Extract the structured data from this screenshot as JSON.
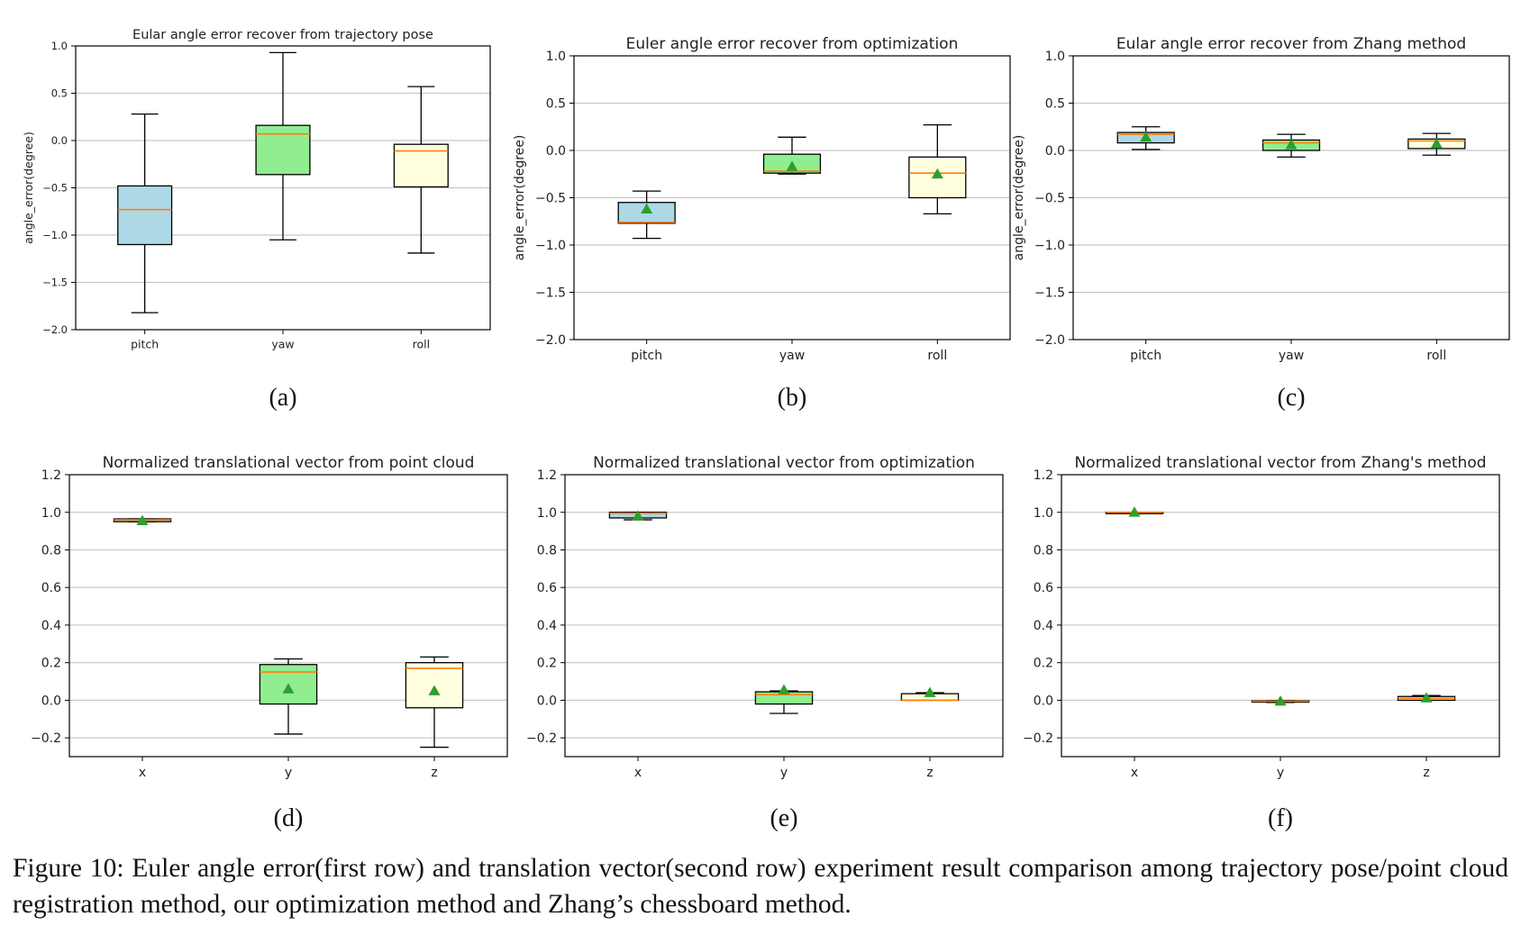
{
  "chart_data": [
    {
      "type": "box",
      "panel_label": "(a)",
      "title": "Eular angle error recover from trajectory pose",
      "xlabel": "",
      "ylabel": "angle_error(degree)",
      "ylim": [
        -2.0,
        1.0
      ],
      "yticks": [
        -2.0,
        -1.5,
        -1.0,
        -0.5,
        0.0,
        0.5,
        1.0
      ],
      "ytick_labels": [
        "−2.0",
        "−1.5",
        "−1.0",
        "−0.5",
        "0.0",
        "0.5",
        "1.0"
      ],
      "grid": "horizontal",
      "show_mean": false,
      "categories": [
        "pitch",
        "yaw",
        "roll"
      ],
      "boxes": [
        {
          "min": -1.82,
          "q1": -1.1,
          "median": -0.73,
          "q3": -0.48,
          "max": 0.28,
          "color": "#add8e6"
        },
        {
          "min": -1.05,
          "q1": -0.36,
          "median": 0.07,
          "q3": 0.16,
          "max": 0.93,
          "color": "#90ee90"
        },
        {
          "min": -1.19,
          "q1": -0.49,
          "median": -0.11,
          "q3": -0.04,
          "max": 0.57,
          "color": "#ffffe0"
        }
      ]
    },
    {
      "type": "box",
      "panel_label": "(b)",
      "title": "Euler angle error recover from optimization",
      "xlabel": "",
      "ylabel": "angle_error(degree)",
      "ylim": [
        -2.0,
        1.0
      ],
      "yticks": [
        -2.0,
        -1.5,
        -1.0,
        -0.5,
        0.0,
        0.5,
        1.0
      ],
      "ytick_labels": [
        "−2.0",
        "−1.5",
        "−1.0",
        "−0.5",
        "0.0",
        "0.5",
        "1.0"
      ],
      "grid": "horizontal",
      "show_mean": true,
      "categories": [
        "pitch",
        "yaw",
        "roll"
      ],
      "boxes": [
        {
          "min": -0.93,
          "q1": -0.77,
          "median": -0.76,
          "q3": -0.55,
          "max": -0.43,
          "mean": -0.62,
          "color": "#add8e6"
        },
        {
          "min": -0.25,
          "q1": -0.24,
          "median": -0.22,
          "q3": -0.04,
          "max": 0.14,
          "mean": -0.17,
          "color": "#90ee90"
        },
        {
          "min": -0.67,
          "q1": -0.5,
          "median": -0.24,
          "q3": -0.07,
          "max": 0.27,
          "mean": -0.25,
          "color": "#ffffe0"
        }
      ]
    },
    {
      "type": "box",
      "panel_label": "(c)",
      "title": "Eular angle error recover from Zhang method",
      "xlabel": "",
      "ylabel": "angle_error(degree)",
      "ylim": [
        -2.0,
        1.0
      ],
      "yticks": [
        -2.0,
        -1.5,
        -1.0,
        -0.5,
        0.0,
        0.5,
        1.0
      ],
      "ytick_labels": [
        "−2.0",
        "−1.5",
        "−1.0",
        "−0.5",
        "0.0",
        "0.5",
        "1.0"
      ],
      "grid": "horizontal",
      "show_mean": true,
      "categories": [
        "pitch",
        "yaw",
        "roll"
      ],
      "boxes": [
        {
          "min": 0.01,
          "q1": 0.08,
          "median": 0.17,
          "q3": 0.19,
          "max": 0.25,
          "mean": 0.14,
          "color": "#add8e6"
        },
        {
          "min": -0.07,
          "q1": 0.0,
          "median": 0.08,
          "q3": 0.11,
          "max": 0.17,
          "mean": 0.06,
          "color": "#90ee90"
        },
        {
          "min": -0.05,
          "q1": 0.02,
          "median": 0.1,
          "q3": 0.12,
          "max": 0.18,
          "mean": 0.07,
          "color": "#ffffe0"
        }
      ]
    },
    {
      "type": "box",
      "panel_label": "(d)",
      "title": "Normalized translational vector from point cloud",
      "xlabel": "",
      "ylabel": "",
      "ylim": [
        -0.3,
        1.2
      ],
      "yticks": [
        -0.2,
        0.0,
        0.2,
        0.4,
        0.6,
        0.8,
        1.0,
        1.2
      ],
      "ytick_labels": [
        "−0.2",
        "0.0",
        "0.2",
        "0.4",
        "0.6",
        "0.8",
        "1.0",
        "1.2"
      ],
      "grid": "horizontal",
      "show_mean": true,
      "categories": [
        "x",
        "y",
        "z"
      ],
      "boxes": [
        {
          "min": 0.95,
          "q1": 0.95,
          "median": 0.96,
          "q3": 0.965,
          "max": 0.965,
          "mean": 0.955,
          "color": "#add8e6"
        },
        {
          "min": -0.18,
          "q1": -0.02,
          "median": 0.15,
          "q3": 0.19,
          "max": 0.22,
          "mean": 0.06,
          "color": "#90ee90"
        },
        {
          "min": -0.25,
          "q1": -0.04,
          "median": 0.17,
          "q3": 0.2,
          "max": 0.23,
          "mean": 0.05,
          "color": "#ffffe0"
        }
      ]
    },
    {
      "type": "box",
      "panel_label": "(e)",
      "title": "Normalized translational vector from optimization",
      "xlabel": "",
      "ylabel": "",
      "ylim": [
        -0.3,
        1.2
      ],
      "yticks": [
        -0.2,
        0.0,
        0.2,
        0.4,
        0.6,
        0.8,
        1.0,
        1.2
      ],
      "ytick_labels": [
        "−0.2",
        "0.0",
        "0.2",
        "0.4",
        "0.6",
        "0.8",
        "1.0",
        "1.2"
      ],
      "grid": "horizontal",
      "show_mean": true,
      "categories": [
        "x",
        "y",
        "z"
      ],
      "boxes": [
        {
          "min": 0.96,
          "q1": 0.97,
          "median": 0.995,
          "q3": 1.0,
          "max": 1.0,
          "mean": 0.98,
          "color": "#add8e6"
        },
        {
          "min": -0.07,
          "q1": -0.02,
          "median": 0.03,
          "q3": 0.045,
          "max": 0.05,
          "mean": 0.055,
          "color": "#90ee90"
        },
        {
          "min": 0.0,
          "q1": 0.0,
          "median": 0.0,
          "q3": 0.035,
          "max": 0.04,
          "mean": 0.04,
          "color": "#ffffe0"
        }
      ]
    },
    {
      "type": "box",
      "panel_label": "(f)",
      "title": "Normalized translational vector from Zhang's method",
      "xlabel": "",
      "ylabel": "",
      "ylim": [
        -0.3,
        1.2
      ],
      "yticks": [
        -0.2,
        0.0,
        0.2,
        0.4,
        0.6,
        0.8,
        1.0,
        1.2
      ],
      "ytick_labels": [
        "−0.2",
        "0.0",
        "0.2",
        "0.4",
        "0.6",
        "0.8",
        "1.0",
        "1.2"
      ],
      "grid": "horizontal",
      "show_mean": true,
      "categories": [
        "x",
        "y",
        "z"
      ],
      "boxes": [
        {
          "min": 1.0,
          "q1": 1.0,
          "median": 1.0,
          "q3": 1.0,
          "max": 1.0,
          "mean": 1.0,
          "color": "#add8e6"
        },
        {
          "min": -0.012,
          "q1": -0.01,
          "median": -0.005,
          "q3": -0.002,
          "max": -0.001,
          "mean": -0.005,
          "color": "#90ee90"
        },
        {
          "min": 0.0,
          "q1": 0.0,
          "median": 0.01,
          "q3": 0.02,
          "max": 0.025,
          "mean": 0.012,
          "color": "#ffffe0"
        }
      ]
    }
  ],
  "style": {
    "median_color": "#ff7f0e",
    "mean_marker_color": "#2ca02c",
    "grid_color": "#c8c8c8",
    "frame_color": "#000000"
  },
  "caption": "Figure 10: Euler angle error(first row) and translation vector(second row) experiment result comparison among trajectory pose/point cloud registration method, our optimization method and Zhang’s chessboard method."
}
